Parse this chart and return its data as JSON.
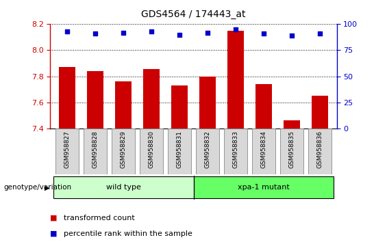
{
  "title": "GDS4564 / 174443_at",
  "samples": [
    "GSM958827",
    "GSM958828",
    "GSM958829",
    "GSM958830",
    "GSM958831",
    "GSM958832",
    "GSM958833",
    "GSM958834",
    "GSM958835",
    "GSM958836"
  ],
  "bar_values": [
    7.87,
    7.84,
    7.76,
    7.855,
    7.73,
    7.8,
    8.15,
    7.74,
    7.46,
    7.65
  ],
  "percentile_values": [
    93,
    91,
    92,
    93,
    90,
    92,
    95,
    91,
    89,
    91
  ],
  "bar_color": "#cc0000",
  "dot_color": "#0000cc",
  "ylim_left": [
    7.4,
    8.2
  ],
  "ylim_right": [
    0,
    100
  ],
  "yticks_left": [
    7.4,
    7.6,
    7.8,
    8.0,
    8.2
  ],
  "yticks_right": [
    0,
    25,
    50,
    75,
    100
  ],
  "groups": [
    {
      "label": "wild type",
      "start": 0,
      "end": 4,
      "color": "#ccffcc"
    },
    {
      "label": "xpa-1 mutant",
      "start": 5,
      "end": 9,
      "color": "#66ff66"
    }
  ],
  "group_label": "genotype/variation",
  "legend_items": [
    {
      "label": "transformed count",
      "color": "#cc0000"
    },
    {
      "label": "percentile rank within the sample",
      "color": "#0000cc"
    }
  ],
  "bar_width": 0.6,
  "tick_label_color_left": "#cc0000",
  "tick_label_color_right": "#0000cc",
  "bg_color_plot": "#ffffff",
  "bg_color_fig": "#ffffff",
  "grid_color": "#000000"
}
